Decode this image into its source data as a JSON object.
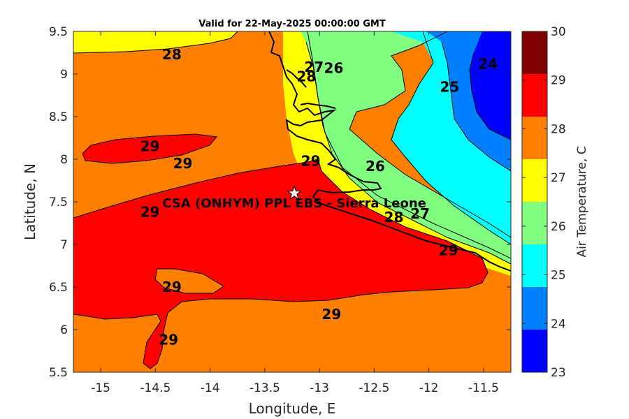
{
  "title": "Valid for 22-May-2025 00:00:00 GMT",
  "site_label": "CSA (ONHYM) PPL EBS  - Sierra Leone",
  "site_marker": {
    "lon": -13.23,
    "lat": 7.6,
    "icon": "star-icon"
  },
  "xaxis": {
    "label": "Longitude, E",
    "ticks": [
      "-15",
      "-14.5",
      "-14",
      "-13.5",
      "-13",
      "-12.5",
      "-12",
      "-11.5"
    ],
    "tick_values": [
      -15,
      -14.5,
      -14,
      -13.5,
      -13,
      -12.5,
      -12,
      -11.5
    ],
    "range": [
      -15.25,
      -11.25
    ]
  },
  "yaxis": {
    "label": "Latitude, N",
    "ticks": [
      "9.5",
      "9",
      "8.5",
      "8",
      "7.5",
      "7",
      "6.5",
      "6",
      "5.5"
    ],
    "tick_values": [
      9.5,
      9,
      8.5,
      8,
      7.5,
      7,
      6.5,
      6,
      5.5
    ],
    "range": [
      5.5,
      9.5
    ]
  },
  "colorbar": {
    "label": "Air Temperature, C",
    "ticks": [
      "30",
      "29",
      "28",
      "27",
      "26",
      "25",
      "24",
      "23"
    ],
    "range": [
      23,
      30
    ],
    "colors": [
      "#0000ff",
      "#0080ff",
      "#00ffff",
      "#80ff80",
      "#ffff00",
      "#ff8000",
      "#ff0000",
      "#800000"
    ]
  },
  "contour_labels": [
    {
      "text": "28",
      "lon": -14.35,
      "lat": 9.23
    },
    {
      "text": "29",
      "lon": -14.55,
      "lat": 8.15
    },
    {
      "text": "29",
      "lon": -14.25,
      "lat": 7.95
    },
    {
      "text": "29",
      "lon": -13.08,
      "lat": 7.98
    },
    {
      "text": "29",
      "lon": -14.55,
      "lat": 7.38
    },
    {
      "text": "29",
      "lon": -14.35,
      "lat": 6.5
    },
    {
      "text": "29",
      "lon": -12.89,
      "lat": 6.18
    },
    {
      "text": "29",
      "lon": -14.38,
      "lat": 5.88
    },
    {
      "text": "29",
      "lon": -11.82,
      "lat": 6.93
    },
    {
      "text": "27",
      "lon": -13.05,
      "lat": 9.08
    },
    {
      "text": "28",
      "lon": -13.12,
      "lat": 8.97
    },
    {
      "text": "26",
      "lon": -12.87,
      "lat": 9.07
    },
    {
      "text": "25",
      "lon": -11.81,
      "lat": 8.85
    },
    {
      "text": "24",
      "lon": -11.46,
      "lat": 9.12
    },
    {
      "text": "26",
      "lon": -12.49,
      "lat": 7.92
    },
    {
      "text": "28",
      "lon": -12.32,
      "lat": 7.32
    },
    {
      "text": "27",
      "lon": -12.08,
      "lat": 7.36
    }
  ]
}
